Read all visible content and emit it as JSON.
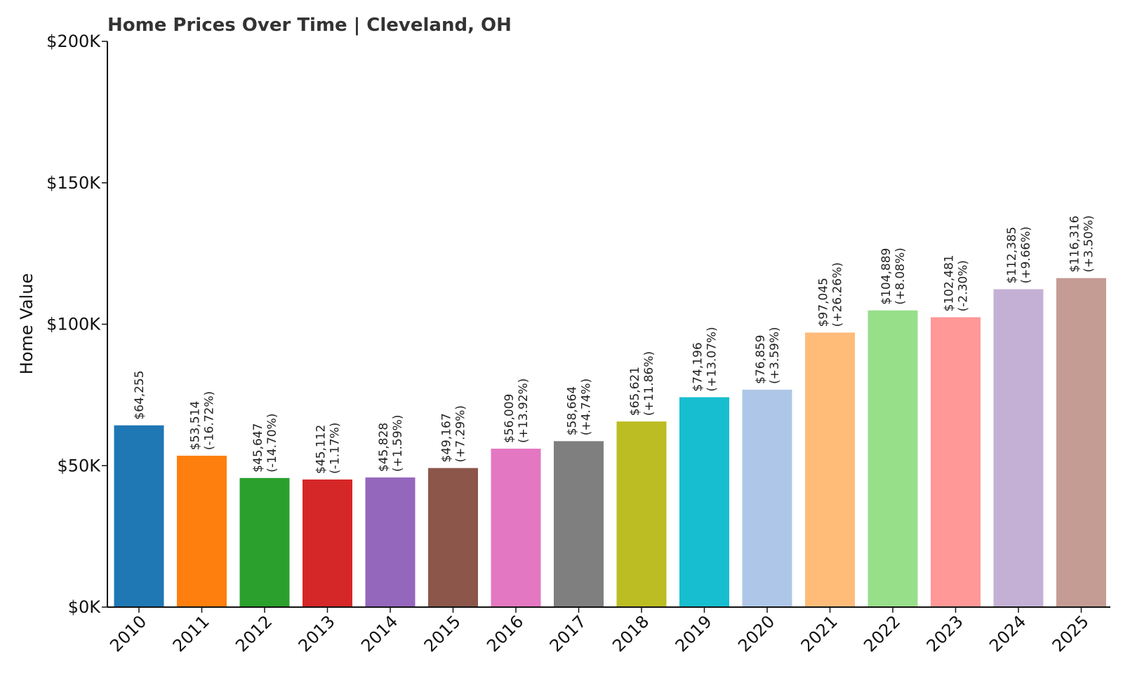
{
  "chart_data": {
    "type": "bar",
    "title": "Home Prices Over Time | Cleveland, OH",
    "xlabel": "",
    "ylabel": "Home Value",
    "ylim": [
      0,
      200000
    ],
    "yticks": [
      {
        "value": 0,
        "label": "$0K"
      },
      {
        "value": 50000,
        "label": "$50K"
      },
      {
        "value": 100000,
        "label": "$100K"
      },
      {
        "value": 150000,
        "label": "$150K"
      },
      {
        "value": 200000,
        "label": "$200K"
      }
    ],
    "grid": false,
    "categories": [
      "2010",
      "2011",
      "2012",
      "2013",
      "2014",
      "2015",
      "2016",
      "2017",
      "2018",
      "2019",
      "2020",
      "2021",
      "2022",
      "2023",
      "2024",
      "2025"
    ],
    "values": [
      64255,
      53514,
      45647,
      45112,
      45828,
      49167,
      56009,
      58664,
      65621,
      74196,
      76859,
      97045,
      104889,
      102481,
      112385,
      116316
    ],
    "value_labels": [
      "$64,255",
      "$53,514",
      "$45,647",
      "$45,112",
      "$45,828",
      "$49,167",
      "$56,009",
      "$58,664",
      "$65,621",
      "$74,196",
      "$76,859",
      "$97,045",
      "$104,889",
      "$102,481",
      "$112,385",
      "$116,316"
    ],
    "change_labels": [
      "",
      "(-16.72%)",
      "(-14.70%)",
      "(-1.17%)",
      "(+1.59%)",
      "(+7.29%)",
      "(+13.92%)",
      "(+4.74%)",
      "(+11.86%)",
      "(+13.07%)",
      "(+3.59%)",
      "(+26.26%)",
      "(+8.08%)",
      "(-2.30%)",
      "(+9.66%)",
      "(+3.50%)"
    ],
    "colors": [
      "#1f77b4",
      "#ff7f0e",
      "#2ca02c",
      "#d62728",
      "#9467bd",
      "#8c564b",
      "#e377c2",
      "#7f7f7f",
      "#bcbd22",
      "#17becf",
      "#aec7e8",
      "#ffbb78",
      "#98df8a",
      "#ff9896",
      "#c5b0d5",
      "#c49c94"
    ]
  }
}
